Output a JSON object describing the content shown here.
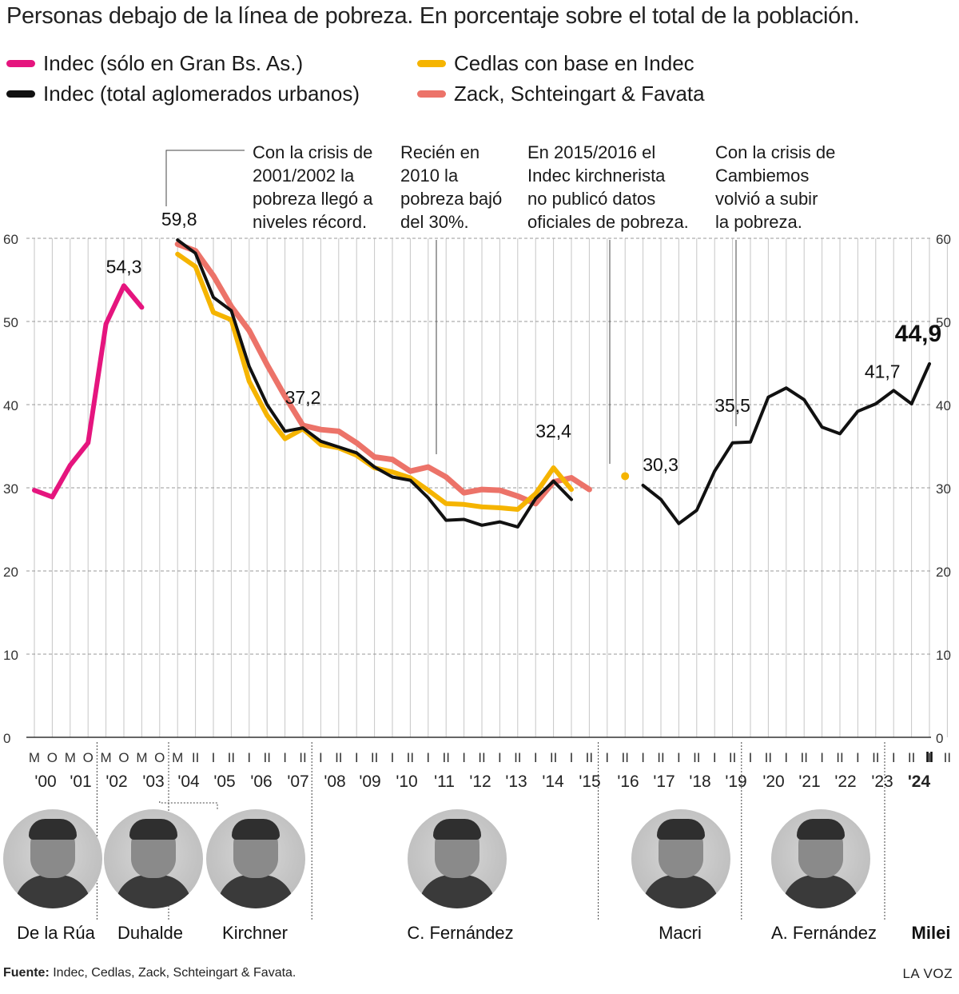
{
  "title": "Personas debajo de la línea de pobreza. En porcentaje sobre el total de la población.",
  "legend": [
    {
      "label": "Indec (sólo en Gran Bs. As.)",
      "color": "#e5157e"
    },
    {
      "label": "Indec (total aglomerados urbanos)",
      "color": "#111111"
    },
    {
      "label": "Cedlas con base en Indec",
      "color": "#f5b400"
    },
    {
      "label": "Zack, Schteingart & Favata",
      "color": "#ec7369"
    }
  ],
  "chart_data": {
    "type": "line",
    "ylim": [
      0,
      60
    ],
    "yticks": [
      "0",
      "10",
      "20",
      "30",
      "40",
      "50",
      "60"
    ],
    "grid": true,
    "period_labels": [
      "M",
      "O",
      "M",
      "O",
      "M",
      "O",
      "M",
      "O",
      "M",
      "II",
      "I",
      "II",
      "I",
      "II",
      "I",
      "II",
      "I",
      "II",
      "I",
      "II",
      "I",
      "II",
      "I",
      "II",
      "I",
      "II",
      "I",
      "II",
      "I",
      "II",
      "I",
      "II",
      "I",
      "II",
      "I",
      "II",
      "I",
      "II",
      "I",
      "II",
      "I",
      "II",
      "I",
      "II",
      "I",
      "II",
      "I",
      "II",
      "I",
      "II",
      "I",
      "II",
      "I",
      "II",
      "I",
      "II",
      "I",
      "II",
      "I",
      "II",
      "I",
      "II",
      "I",
      "II",
      "I",
      "II"
    ],
    "last_period_label": "II",
    "year_labels": [
      "'00",
      "'01",
      "'02",
      "'03",
      "'04",
      "'05",
      "'06",
      "'07",
      "'08",
      "'09",
      "'10",
      "'11",
      "'12",
      "'13",
      "'14",
      "'15",
      "'16",
      "'17",
      "'18",
      "'19",
      "'20",
      "'21",
      "'22",
      "'23",
      "'24"
    ],
    "series": [
      {
        "name": "Indec (sólo en Gran Bs. As.)",
        "color": "#e5157e",
        "x": [
          0,
          1,
          2,
          3,
          4,
          5,
          6,
          7
        ],
        "y": [
          29.7,
          28.9,
          32.7,
          35.4,
          49.7,
          54.3,
          51.7,
          null
        ]
      },
      {
        "name": "Indec (total aglomerados urbanos)",
        "color": "#111111",
        "x": [
          8,
          9,
          10,
          11,
          12,
          13,
          14,
          15,
          16,
          17,
          18,
          19,
          20,
          21,
          22,
          23,
          24,
          25,
          26,
          27,
          28,
          29,
          30,
          31
        ],
        "y": [
          59.8,
          58.2,
          52.9,
          51.3,
          44.6,
          40.0,
          36.8,
          37.2,
          35.6,
          34.9,
          34.2,
          32.5,
          31.3,
          30.9,
          28.8,
          26.1,
          26.2,
          25.5,
          25.9,
          25.3,
          28.7,
          30.8,
          28.6,
          null
        ],
        "x2": [
          34,
          35,
          36,
          37,
          38,
          39,
          40,
          41,
          42,
          43,
          44,
          45,
          46,
          47,
          48,
          49,
          50
        ],
        "y2": [
          30.3,
          28.6,
          25.7,
          27.3,
          32.0,
          35.4,
          35.5,
          40.9,
          42.0,
          40.6,
          37.3,
          36.5,
          39.2,
          40.1,
          41.7,
          40.1,
          44.9
        ]
      },
      {
        "name": "Cedlas con base en Indec",
        "color": "#f5b400",
        "x": [
          8,
          9,
          10,
          11,
          12,
          13,
          14,
          15,
          16,
          17,
          18,
          19,
          20,
          21,
          22,
          23,
          24,
          25,
          26,
          27,
          28,
          29,
          30
        ],
        "y": [
          58.1,
          56.6,
          51.1,
          50.2,
          42.8,
          38.7,
          35.9,
          37.1,
          35.2,
          34.8,
          33.9,
          32.4,
          31.9,
          31.2,
          29.7,
          28.1,
          28.0,
          27.7,
          27.6,
          27.4,
          29.3,
          32.4,
          29.8
        ],
        "point": {
          "x": 33,
          "y": 31.4
        }
      },
      {
        "name": "Zack, Schteingart & Favata",
        "color": "#ec7369",
        "x": [
          8,
          9,
          10,
          11,
          12,
          13,
          14,
          15,
          16,
          17,
          18,
          19,
          20,
          21,
          22,
          23,
          24,
          25,
          26,
          27,
          28,
          29,
          30,
          31
        ],
        "y": [
          59.3,
          58.5,
          55.5,
          51.8,
          48.9,
          44.8,
          41.0,
          37.5,
          37.0,
          36.8,
          35.4,
          33.7,
          33.4,
          32.0,
          32.5,
          31.3,
          29.4,
          29.8,
          29.7,
          29.0,
          28.1,
          30.7,
          31.2,
          29.8
        ]
      }
    ],
    "data_labels": [
      {
        "text": "54,3",
        "x": 5,
        "y": 54.3
      },
      {
        "text": "59,8",
        "x": 8,
        "y": 59.8
      },
      {
        "text": "37,2",
        "x": 15,
        "y": 37.2
      },
      {
        "text": "32,4",
        "x": 29,
        "y": 32.4
      },
      {
        "text": "30,3",
        "x": 34,
        "y": 30.3
      },
      {
        "text": "35,5",
        "x": 39,
        "y": 35.5
      },
      {
        "text": "41,7",
        "x": 48,
        "y": 41.7
      },
      {
        "text": "44,9",
        "x": 50,
        "y": 44.9
      }
    ],
    "annotations": [
      {
        "text": [
          "Con la crisis de",
          "2001/2002 la",
          "pobreza llegó a",
          "niveles récord."
        ]
      },
      {
        "text": [
          "Recién en",
          "2010 la",
          "pobreza bajó",
          "del 30%."
        ]
      },
      {
        "text": [
          "En 2015/2016 el",
          "Indec kirchnerista",
          "no publicó datos",
          "oficiales de pobreza."
        ]
      },
      {
        "text": [
          "Con la crisis de",
          "Cambiemos",
          "volvió a subir",
          "la pobreza."
        ]
      }
    ]
  },
  "presidents": [
    "De la Rúa",
    "Duhalde",
    "Kirchner",
    "C. Fernández",
    "Macri",
    "A. Fernández",
    "Milei"
  ],
  "footer": {
    "source_label": "Fuente:",
    "source_text": " Indec, Cedlas, Zack, Schteingart & Favata.",
    "brand": "LA VOZ"
  }
}
